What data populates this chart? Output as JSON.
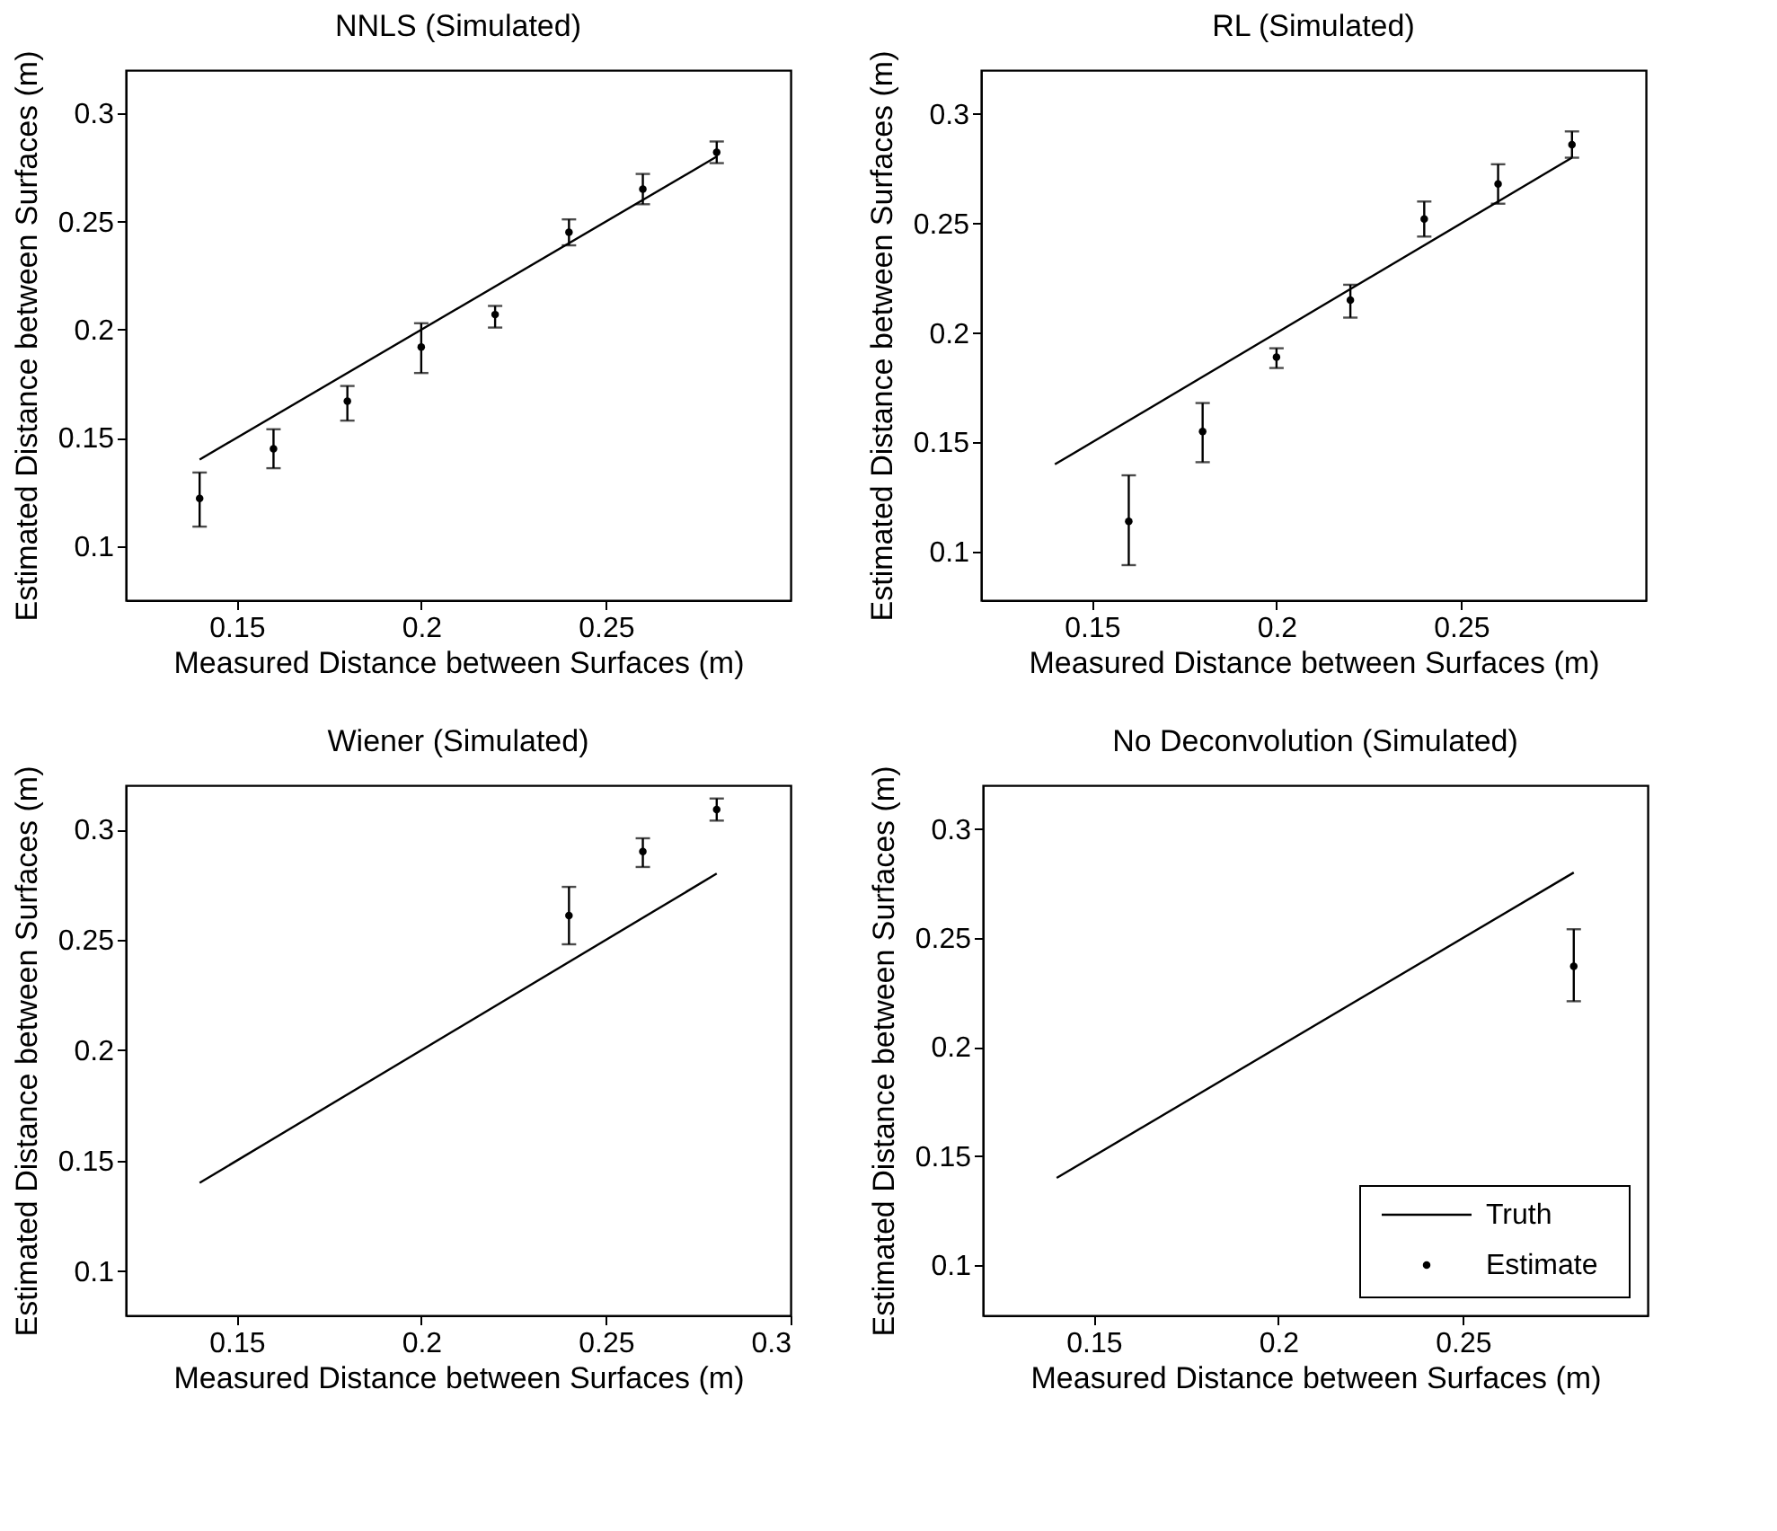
{
  "chart_data": [
    {
      "type": "scatter",
      "title": "NNLS (Simulated)",
      "xlabel": "Measured Distance between Surfaces (m)",
      "ylabel": "Estimated Distance between Surfaces (m)",
      "xlim": [
        0.12,
        0.3
      ],
      "ylim": [
        0.075,
        0.32
      ],
      "xticks": [
        0.15,
        0.2,
        0.25
      ],
      "yticks": [
        0.1,
        0.15,
        0.2,
        0.25,
        0.3
      ],
      "grid": false,
      "legend": false,
      "series": [
        {
          "type": "line",
          "color": "#000000",
          "x": [
            0.14,
            0.28
          ],
          "values": [
            0.14,
            0.28
          ],
          "line_style": "solid",
          "marker": "none"
        },
        {
          "type": "scatter",
          "color": "#000000",
          "marker": "circle",
          "x": [
            0.14,
            0.16,
            0.18,
            0.2,
            0.22,
            0.24,
            0.26,
            0.28
          ],
          "values": [
            0.122,
            0.145,
            0.167,
            0.192,
            0.207,
            0.245,
            0.265,
            0.282
          ],
          "errors": [
            [
              0.109,
              0.134
            ],
            [
              0.136,
              0.154
            ],
            [
              0.158,
              0.174
            ],
            [
              0.18,
              0.203
            ],
            [
              0.201,
              0.211
            ],
            [
              0.239,
              0.251
            ],
            [
              0.258,
              0.272
            ],
            [
              0.277,
              0.287
            ]
          ]
        }
      ]
    },
    {
      "type": "scatter",
      "title": "RL (Simulated)",
      "xlabel": "Measured Distance between Surfaces (m)",
      "ylabel": "Estimated Distance between Surfaces (m)",
      "xlim": [
        0.12,
        0.3
      ],
      "ylim": [
        0.078,
        0.32
      ],
      "xticks": [
        0.15,
        0.2,
        0.25
      ],
      "yticks": [
        0.1,
        0.15,
        0.2,
        0.25,
        0.3
      ],
      "grid": false,
      "legend": false,
      "series": [
        {
          "type": "line",
          "color": "#000000",
          "x": [
            0.14,
            0.28
          ],
          "values": [
            0.14,
            0.28
          ],
          "line_style": "solid",
          "marker": "none"
        },
        {
          "type": "scatter",
          "color": "#000000",
          "marker": "circle",
          "x": [
            0.16,
            0.18,
            0.2,
            0.22,
            0.24,
            0.26,
            0.28
          ],
          "values": [
            0.114,
            0.155,
            0.189,
            0.215,
            0.252,
            0.268,
            0.286
          ],
          "errors": [
            [
              0.094,
              0.135
            ],
            [
              0.141,
              0.168
            ],
            [
              0.184,
              0.193
            ],
            [
              0.207,
              0.222
            ],
            [
              0.244,
              0.26
            ],
            [
              0.259,
              0.277
            ],
            [
              0.28,
              0.292
            ]
          ]
        }
      ]
    },
    {
      "type": "scatter",
      "title": "Wiener (Simulated)",
      "xlabel": "Measured Distance between Surfaces (m)",
      "ylabel": "Estimated Distance between Surfaces (m)",
      "xlim": [
        0.12,
        0.3
      ],
      "ylim": [
        0.08,
        0.32
      ],
      "xticks": [
        0.15,
        0.2,
        0.25,
        0.3
      ],
      "yticks": [
        0.1,
        0.15,
        0.2,
        0.25,
        0.3
      ],
      "grid": false,
      "legend": false,
      "series": [
        {
          "type": "line",
          "color": "#000000",
          "x": [
            0.14,
            0.28
          ],
          "values": [
            0.14,
            0.28
          ],
          "line_style": "solid",
          "marker": "none"
        },
        {
          "type": "scatter",
          "color": "#000000",
          "marker": "circle",
          "x": [
            0.24,
            0.26,
            0.28
          ],
          "values": [
            0.261,
            0.29,
            0.309
          ],
          "errors": [
            [
              0.248,
              0.274
            ],
            [
              0.283,
              0.296
            ],
            [
              0.304,
              0.314
            ]
          ]
        }
      ]
    },
    {
      "type": "scatter",
      "title": "No Deconvolution (Simulated)",
      "xlabel": "Measured Distance between Surfaces (m)",
      "ylabel": "Estimated Distance between Surfaces (m)",
      "xlim": [
        0.12,
        0.3
      ],
      "ylim": [
        0.077,
        0.32
      ],
      "xticks": [
        0.15,
        0.2,
        0.25
      ],
      "yticks": [
        0.1,
        0.15,
        0.2,
        0.25,
        0.3
      ],
      "grid": false,
      "legend": "bottom right",
      "series": [
        {
          "type": "line",
          "name": "Truth",
          "color": "#000000",
          "x": [
            0.14,
            0.28
          ],
          "values": [
            0.14,
            0.28
          ],
          "line_style": "solid",
          "marker": "none"
        },
        {
          "type": "scatter",
          "name": "Estimate",
          "color": "#000000",
          "marker": "circle",
          "x": [
            0.28
          ],
          "values": [
            0.237
          ],
          "errors": [
            [
              0.221,
              0.254
            ]
          ]
        }
      ]
    }
  ]
}
